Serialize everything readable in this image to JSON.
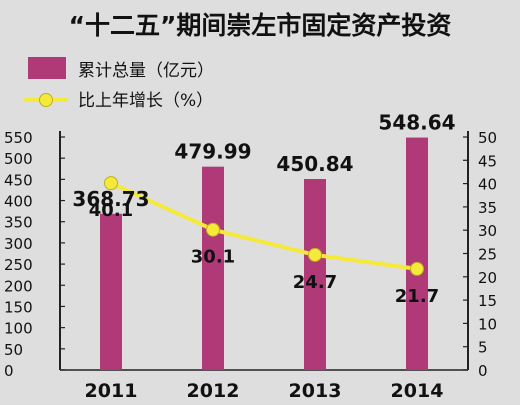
{
  "chart_data": {
    "type": "bar",
    "title": "“十二五”期间崇左市固定资产投资",
    "categories": [
      "2011",
      "2012",
      "2013",
      "2014"
    ],
    "series": [
      {
        "name": "累计总量（亿元）",
        "kind": "bar",
        "axis": "left",
        "color": "#b03a78",
        "values": [
          368.73,
          479.99,
          450.84,
          548.64
        ],
        "labels": [
          "368.73",
          "479.99",
          "450.84",
          "548.64"
        ]
      },
      {
        "name": "比上年增长（%）",
        "kind": "line",
        "axis": "right",
        "color": "#f5e93a",
        "values": [
          40.1,
          30.1,
          24.7,
          21.7
        ],
        "labels": [
          "40.1",
          "30.1",
          "24.7",
          "21.7"
        ]
      }
    ],
    "y_left": {
      "min": 0,
      "max": 550,
      "step": 50
    },
    "y_right": {
      "min": 0,
      "max": 50,
      "step": 5
    },
    "legend_position": "top-left",
    "grid": false
  }
}
